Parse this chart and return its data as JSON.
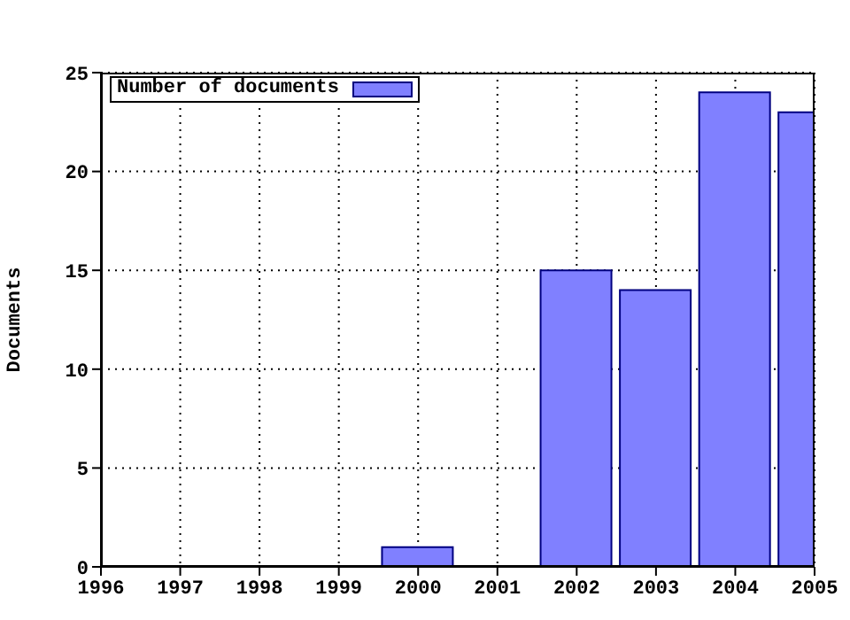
{
  "chart_data": {
    "type": "bar",
    "ylabel": "Documents",
    "x": [
      2000,
      2002,
      2003,
      2004,
      2005
    ],
    "series": [
      {
        "name": "Number of documents",
        "color": "#8080ff",
        "values": [
          1,
          15,
          14,
          24,
          23
        ]
      }
    ],
    "xlim": [
      1996,
      2005
    ],
    "xticks": [
      1996,
      1997,
      1998,
      1999,
      2000,
      2001,
      2002,
      2003,
      2004,
      2005
    ],
    "ylim": [
      0,
      25
    ],
    "yticks": [
      0,
      5,
      10,
      15,
      20,
      25
    ],
    "grid": true,
    "legend": "top left"
  }
}
